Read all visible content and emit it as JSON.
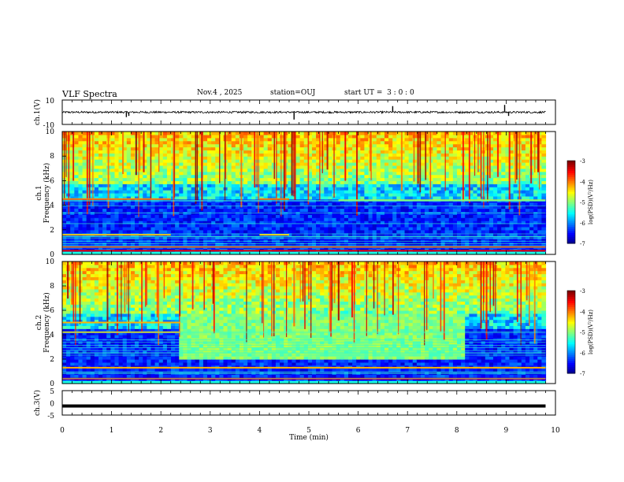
{
  "header": {
    "title": "VLF Spectra",
    "date": "Nov.4 , 2025",
    "station": "station=OUJ",
    "start_ut": "start UT =  3 : 0 : 0"
  },
  "chart_data": [
    {
      "type": "line",
      "name": "ch1-waveform",
      "ylabel": "ch.1(V)",
      "ylim": [
        -10,
        10
      ],
      "yticks": [
        "10",
        "-10"
      ],
      "x_range": [
        0,
        9.8
      ],
      "baseline_v": 0,
      "spikes": [
        {
          "x": 1.3,
          "y": -4
        },
        {
          "x": 1.35,
          "y": -3
        },
        {
          "x": 4.7,
          "y": -6
        },
        {
          "x": 6.7,
          "y": 5
        },
        {
          "x": 8.97,
          "y": 6
        },
        {
          "x": 9.05,
          "y": -3
        }
      ]
    },
    {
      "type": "heatmap",
      "name": "ch1-spectrogram",
      "ylabel": "ch.1\nFrequency (kHz)",
      "ylim": [
        0,
        10
      ],
      "yticks": [
        "0",
        "2",
        "4",
        "6",
        "8",
        "10"
      ],
      "x_range": [
        0,
        9.8
      ],
      "colorbar": {
        "label": "log(PSD)(V²/Hz)",
        "range": [
          -7,
          -3
        ],
        "ticks": [
          "-3",
          "-4",
          "-5",
          "-6",
          "-7"
        ]
      },
      "bands_khz": [
        {
          "f": 4.5,
          "x": [
            0,
            2.2
          ],
          "level": -4
        },
        {
          "f": 4.5,
          "x": [
            4.0,
            4.6
          ],
          "level": -4
        },
        {
          "f": 4.4,
          "x": [
            5.6,
            9.8
          ],
          "level": -4.6
        },
        {
          "f": 1.6,
          "x": [
            0,
            2.2
          ],
          "level": -4.2
        },
        {
          "f": 1.6,
          "x": [
            4.0,
            4.6
          ],
          "level": -4.3
        },
        {
          "f": 0.6,
          "x": [
            0,
            9.8
          ],
          "level": -3.5
        },
        {
          "f": 0.3,
          "x": [
            0,
            9.8
          ],
          "level": -3.4
        }
      ]
    },
    {
      "type": "heatmap",
      "name": "ch2-spectrogram",
      "ylabel": "ch.2\nFrequency (kHz)",
      "ylim": [
        0,
        10
      ],
      "yticks": [
        "0",
        "2",
        "4",
        "6",
        "8",
        "10"
      ],
      "x_range": [
        0,
        9.8
      ],
      "colorbar": {
        "label": "log(PSD)(V²/Hz)",
        "range": [
          -7,
          -3
        ],
        "ticks": [
          "-3",
          "-4",
          "-5",
          "-6",
          "-7"
        ]
      },
      "bands_khz": [
        {
          "f": 5.0,
          "x": [
            0,
            2.4
          ],
          "level": -4.2
        },
        {
          "f": 4.2,
          "x": [
            0,
            2.4
          ],
          "level": -4.1
        },
        {
          "f": 1.3,
          "x": [
            0,
            9.8
          ],
          "level": -4.2
        },
        {
          "f": 0.4,
          "x": [
            0,
            9.8
          ],
          "level": -3.6
        }
      ],
      "blocks": [
        {
          "x": [
            2.4,
            8.2
          ],
          "f": [
            2.1,
            5.8
          ],
          "level": -5.0
        }
      ]
    },
    {
      "type": "line",
      "name": "ch3-waveform",
      "ylabel": "ch.3(V)",
      "ylim": [
        -5,
        5
      ],
      "yticks": [
        "5",
        "0",
        "-5"
      ],
      "x_range": [
        0,
        9.8
      ],
      "baseline_v": 0
    }
  ],
  "xaxis": {
    "label": "Time (min)",
    "range": [
      0,
      10
    ],
    "ticks": [
      "0",
      "1",
      "2",
      "3",
      "4",
      "5",
      "6",
      "7",
      "8",
      "9",
      "10"
    ]
  }
}
